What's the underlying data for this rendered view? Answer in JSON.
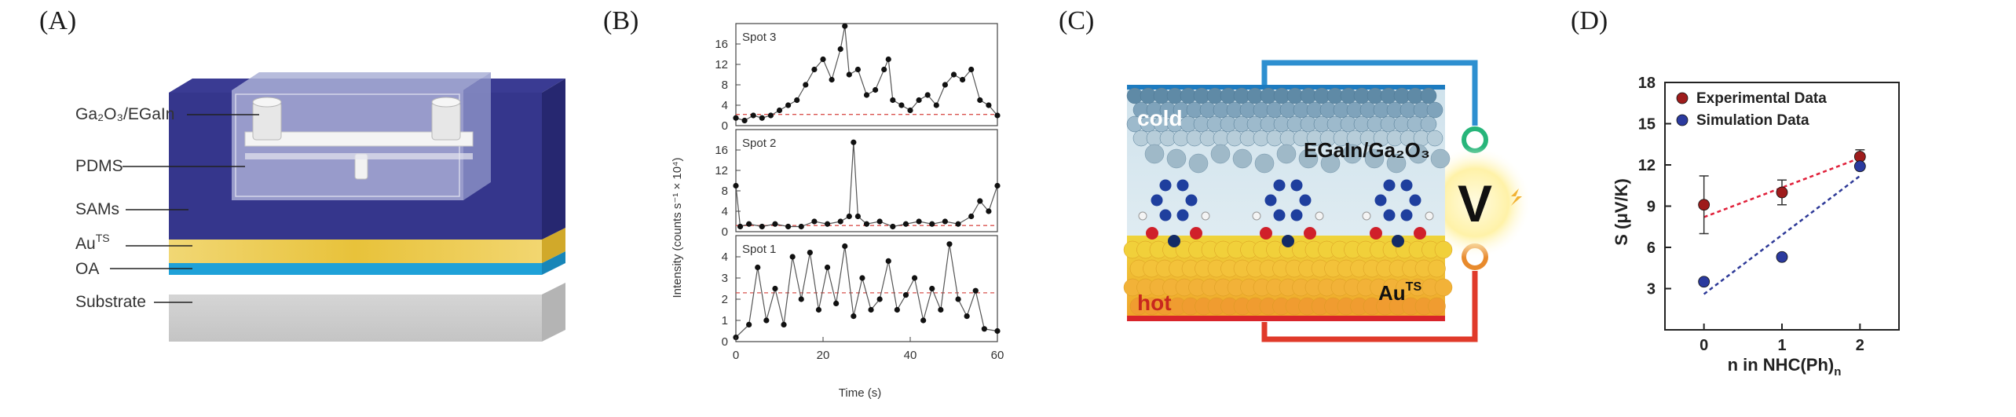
{
  "panels": {
    "a": {
      "letter": "(A)",
      "labels": {
        "ga2o3": "Ga₂O₃/EGaIn",
        "pdms": "PDMS",
        "sams": "SAMs",
        "au": "Au",
        "au_sup": "TS",
        "oa": "OA",
        "substrate": "Substrate"
      }
    },
    "b": {
      "letter": "(B)",
      "ylabel": "Intensity (counts s⁻¹ × 10⁴)",
      "xlabel": "Time (s)"
    },
    "c": {
      "letter": "(C)",
      "cold": "cold",
      "hot": "hot",
      "egain": "EGaIn/Ga₂O₃",
      "au": "Au",
      "au_sup": "TS",
      "volt": "V"
    },
    "d": {
      "letter": "(D)",
      "ylabel": "S (μV/K)",
      "xlabel": "n in NHC(Ph)",
      "xlabel_sub": "n"
    }
  },
  "chart_data": [
    {
      "type": "line",
      "panel": "B",
      "xlabel": "Time (s)",
      "ylabel": "Intensity (counts s⁻¹ × 10⁴)",
      "xlim": [
        0,
        60
      ],
      "xticks": [
        0,
        20,
        40,
        60
      ],
      "subplots": [
        {
          "name": "Spot 3",
          "ylim": [
            0,
            20
          ],
          "yticks": [
            0,
            4,
            8,
            12,
            16
          ],
          "threshold": 2.2,
          "x": [
            0,
            2,
            4,
            6,
            8,
            10,
            12,
            14,
            16,
            18,
            20,
            22,
            24,
            25,
            26,
            28,
            30,
            32,
            34,
            35,
            36,
            38,
            40,
            42,
            44,
            46,
            48,
            50,
            52,
            54,
            56,
            58,
            60
          ],
          "y": [
            1.5,
            1,
            2,
            1.5,
            2,
            3,
            4,
            5,
            8,
            11,
            13,
            9,
            15,
            19.5,
            10,
            11,
            6,
            7,
            11,
            13,
            5,
            4,
            3,
            5,
            6,
            4,
            8,
            10,
            9,
            11,
            5,
            4,
            2
          ]
        },
        {
          "name": "Spot 2",
          "ylim": [
            0,
            20
          ],
          "yticks": [
            0,
            4,
            8,
            12,
            16
          ],
          "threshold": 1.2,
          "x": [
            0,
            1,
            3,
            6,
            9,
            12,
            15,
            18,
            21,
            24,
            26,
            27,
            28,
            30,
            33,
            36,
            39,
            42,
            45,
            48,
            51,
            54,
            56,
            58,
            60
          ],
          "y": [
            9,
            1,
            1.5,
            1,
            1.5,
            1,
            1,
            2,
            1.5,
            2,
            3,
            17.5,
            3,
            1.5,
            2,
            1,
            1.5,
            2,
            1.5,
            2,
            1.5,
            3,
            6,
            4,
            9
          ]
        },
        {
          "name": "Spot 1",
          "ylim": [
            0,
            5
          ],
          "yticks": [
            0,
            1,
            2,
            3,
            4
          ],
          "threshold": 2.3,
          "x": [
            0,
            3,
            5,
            7,
            9,
            11,
            13,
            15,
            17,
            19,
            21,
            23,
            25,
            27,
            29,
            31,
            33,
            35,
            37,
            39,
            41,
            43,
            45,
            47,
            49,
            51,
            53,
            55,
            57,
            60
          ],
          "y": [
            0.2,
            0.8,
            3.5,
            1,
            2.5,
            0.8,
            4,
            2,
            4.2,
            1.5,
            3.5,
            1.8,
            4.5,
            1.2,
            3,
            1.5,
            2,
            3.8,
            1.5,
            2.2,
            3,
            1,
            2.5,
            1.5,
            4.6,
            2,
            1.2,
            2.4,
            0.6,
            0.5
          ]
        }
      ]
    },
    {
      "type": "scatter",
      "panel": "D",
      "xlabel": "n in NHC(Ph)n",
      "ylabel": "S (μV/K)",
      "xlim": [
        -0.5,
        2.5
      ],
      "ylim": [
        0,
        18
      ],
      "xticks": [
        0,
        1,
        2
      ],
      "yticks": [
        3,
        6,
        9,
        12,
        15,
        18
      ],
      "series": [
        {
          "name": "Experimental Data",
          "color": "#9e1c1c",
          "x": [
            0,
            1,
            2
          ],
          "y": [
            9.1,
            10.0,
            12.6
          ],
          "err": [
            2.1,
            0.9,
            0.5
          ],
          "fit": {
            "color": "#e0203a",
            "y0": 8.2,
            "y2": 12.5
          }
        },
        {
          "name": "Simulation Data",
          "color": "#2b3a9e",
          "x": [
            0,
            1,
            2
          ],
          "y": [
            3.5,
            5.3,
            11.9
          ],
          "fit": {
            "color": "#2e3a98",
            "y0": 2.6,
            "y2": 11.2
          }
        }
      ]
    }
  ]
}
